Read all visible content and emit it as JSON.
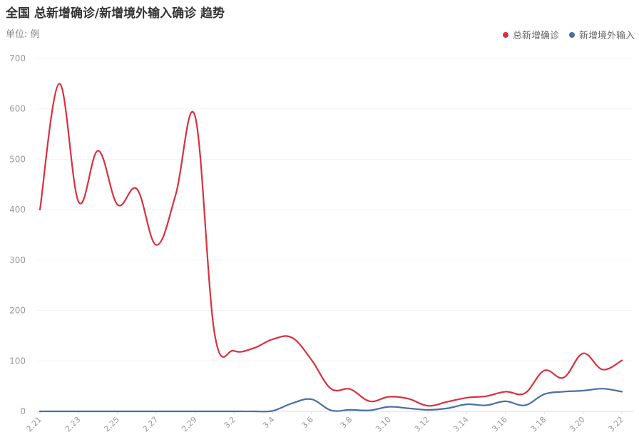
{
  "title": "全国 总新增确诊/新增境外输入确诊 趋势",
  "unit": "单位: 例",
  "colors": {
    "total": "#d9303e",
    "imported": "#4a6fa5",
    "grid": "#f2f2f2",
    "axis": "#dddddd"
  },
  "chart_data": {
    "type": "line",
    "title": "全国 总新增确诊/新增境外输入确诊 趋势",
    "ylabel": "单位: 例",
    "ylim": [
      0,
      700
    ],
    "yticks": [
      0,
      100,
      200,
      300,
      400,
      500,
      600,
      700
    ],
    "grid": true,
    "legend_position": "top-right",
    "categories": [
      "2.21",
      "2.22",
      "2.23",
      "2.24",
      "2.25",
      "2.26",
      "2.27",
      "2.28",
      "2.29",
      "3.1",
      "3.2",
      "3.3",
      "3.4",
      "3.5",
      "3.6",
      "3.7",
      "3.8",
      "3.9",
      "3.10",
      "3.11",
      "3.12",
      "3.13",
      "3.14",
      "3.15",
      "3.16",
      "3.17",
      "3.18",
      "3.19",
      "3.20",
      "3.21",
      "3.22"
    ],
    "tick_labels": [
      "2.21",
      "2.23",
      "2.25",
      "2.27",
      "2.29",
      "3.2",
      "3.4",
      "3.6",
      "3.8",
      "3.10",
      "3.12",
      "3.14",
      "3.16",
      "3.18",
      "3.20",
      "3.22"
    ],
    "series": [
      {
        "name": "总新增确诊",
        "color": "#d9303e",
        "values": [
          400,
          650,
          415,
          517,
          410,
          441,
          330,
          430,
          585,
          155,
          120,
          125,
          143,
          146,
          102,
          45,
          44,
          20,
          29,
          25,
          11,
          19,
          27,
          30,
          39,
          36,
          81,
          67,
          115,
          83,
          101
        ]
      },
      {
        "name": "新增境外输入",
        "color": "#4a6fa5",
        "values": [
          0,
          0,
          0,
          0,
          0,
          0,
          0,
          0,
          0,
          0,
          0,
          0,
          1,
          16,
          24,
          2,
          3,
          2,
          9,
          6,
          3,
          6,
          14,
          12,
          20,
          12,
          34,
          39,
          41,
          45,
          39
        ]
      }
    ]
  }
}
